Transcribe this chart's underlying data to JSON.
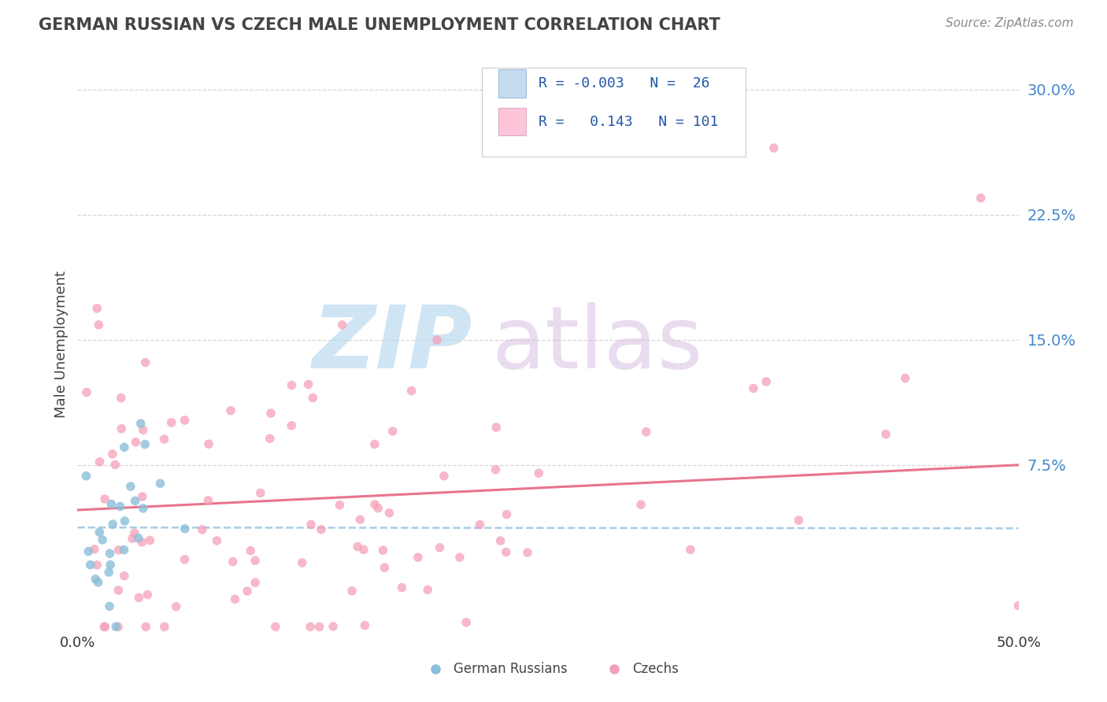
{
  "title": "GERMAN RUSSIAN VS CZECH MALE UNEMPLOYMENT CORRELATION CHART",
  "source": "Source: ZipAtlas.com",
  "ylabel": "Male Unemployment",
  "xlim": [
    0.0,
    0.5
  ],
  "ylim": [
    -0.025,
    0.32
  ],
  "yticks": [
    0.075,
    0.15,
    0.225,
    0.3
  ],
  "ytick_labels": [
    "7.5%",
    "15.0%",
    "22.5%",
    "30.0%"
  ],
  "xticks": [
    0.0,
    0.5
  ],
  "xtick_labels": [
    "0.0%",
    "50.0%"
  ],
  "color_blue": "#8bbfdb",
  "color_pink": "#f5a0b8",
  "color_blue_fill": "#c6dbef",
  "color_pink_fill": "#fcc5d8",
  "background_color": "#ffffff",
  "grid_color": "#cccccc",
  "seed": 99,
  "n_blue": 26,
  "n_pink": 101
}
